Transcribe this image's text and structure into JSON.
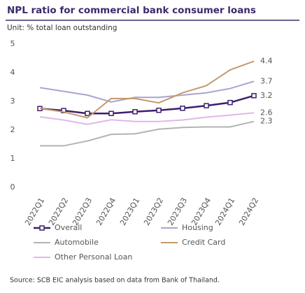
{
  "chart_data": {
    "type": "line",
    "title": "NPL ratio for commercial bank consumer loans",
    "subtitle": "Unit: % total loan outstanding",
    "source": "Source: SCB EIC analysis based on data from Bank of Thailand.",
    "categories": [
      "2022Q1",
      "2022Q2",
      "2022Q3",
      "2022Q4",
      "2023Q1",
      "2023Q2",
      "2023Q3",
      "2023Q4",
      "2024Q1",
      "2024Q2"
    ],
    "series": [
      {
        "name": "Overall",
        "color": "#3d1f6e",
        "marker": "square",
        "values": [
          2.75,
          2.68,
          2.58,
          2.58,
          2.64,
          2.69,
          2.76,
          2.85,
          2.96,
          3.2
        ]
      },
      {
        "name": "Housing",
        "color": "#aaa4cf",
        "values": [
          3.48,
          3.35,
          3.22,
          2.98,
          3.14,
          3.14,
          3.22,
          3.3,
          3.45,
          3.7
        ]
      },
      {
        "name": "Automobile",
        "color": "#b3b3b3",
        "values": [
          1.45,
          1.45,
          1.62,
          1.85,
          1.87,
          2.03,
          2.09,
          2.11,
          2.11,
          2.3
        ]
      },
      {
        "name": "Credit Card",
        "color": "#c49a6c",
        "values": [
          2.76,
          2.63,
          2.43,
          3.1,
          3.1,
          2.95,
          3.3,
          3.55,
          4.1,
          4.4
        ]
      },
      {
        "name": "Other Personal Loan",
        "color": "#e2b6ea",
        "values": [
          2.46,
          2.35,
          2.2,
          2.36,
          2.3,
          2.3,
          2.35,
          2.45,
          2.52,
          2.6
        ]
      }
    ],
    "ylim": [
      0,
      5
    ],
    "yticks": [
      0,
      1,
      2,
      3,
      4,
      5
    ],
    "grid": false
  }
}
